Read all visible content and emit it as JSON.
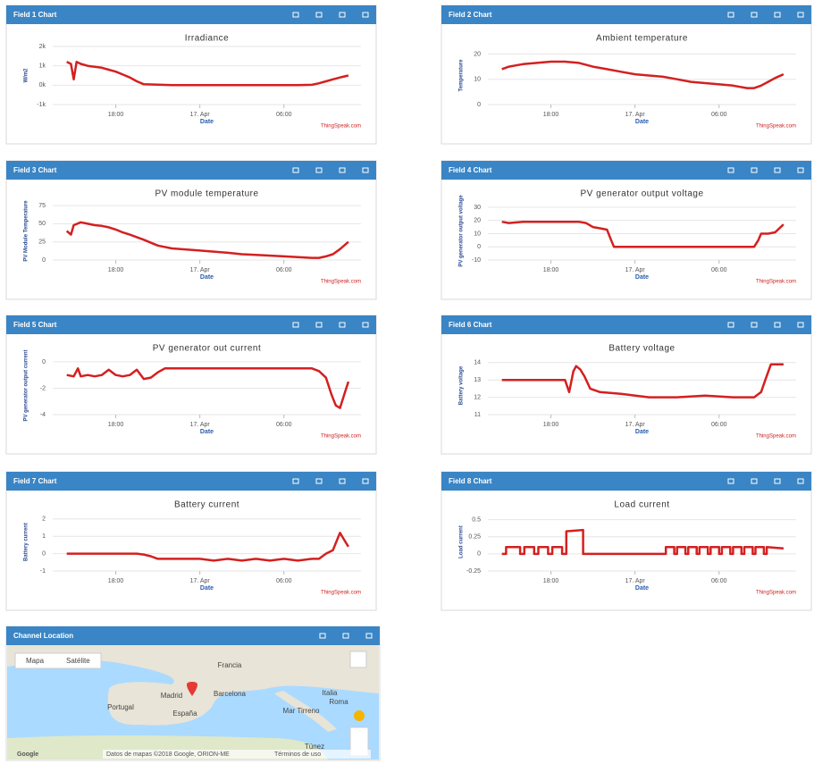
{
  "chart_data": [
    {
      "type": "line",
      "panel_title": "Field 1 Chart",
      "title": "Irradiance",
      "ylabel": "W/m2",
      "xlabel": "Date",
      "credit": "ThingSpeak.com",
      "color": "#d42020",
      "grid": true,
      "x": [
        14.5,
        14.8,
        15.0,
        15.2,
        15.5,
        16,
        16.5,
        17,
        17.5,
        18,
        18.5,
        19,
        19.5,
        20,
        22,
        24,
        26,
        28,
        30,
        31,
        32,
        32.5,
        33,
        33.5,
        34,
        34.6
      ],
      "values": [
        1200,
        1100,
        300,
        1200,
        1100,
        1000,
        950,
        900,
        800,
        700,
        550,
        400,
        200,
        50,
        0,
        0,
        0,
        0,
        0,
        0,
        20,
        100,
        200,
        300,
        400,
        500
      ],
      "xlim": [
        13.5,
        35.5
      ],
      "ylim": [
        -1000,
        2000
      ],
      "xticks": [
        {
          "value": 18,
          "label": "18:00"
        },
        {
          "value": 24,
          "label": "17. Apr"
        },
        {
          "value": 30,
          "label": "06:00"
        }
      ],
      "yticks": [
        {
          "value": -1000,
          "label": "-1k"
        },
        {
          "value": 0,
          "label": "0k"
        },
        {
          "value": 1000,
          "label": "1k"
        },
        {
          "value": 2000,
          "label": "2k"
        }
      ]
    },
    {
      "type": "line",
      "panel_title": "Field 2 Chart",
      "title": "Ambient temperature",
      "ylabel": "Temperature",
      "xlabel": "Date",
      "credit": "ThingSpeak.com",
      "color": "#d42020",
      "grid": true,
      "x": [
        14.5,
        15,
        15.5,
        16,
        17,
        18,
        19,
        20,
        21,
        22,
        23,
        24,
        25,
        26,
        27,
        28,
        29,
        30,
        31,
        32,
        32.5,
        33,
        33.5,
        34,
        34.6
      ],
      "values": [
        14,
        15,
        15.5,
        16,
        16.5,
        17,
        17,
        16.5,
        15,
        14,
        13,
        12,
        11.5,
        11,
        10,
        9,
        8.5,
        8,
        7.5,
        6.5,
        6.5,
        7.5,
        9,
        10.5,
        12
      ],
      "xlim": [
        13.5,
        35.5
      ],
      "ylim": [
        0,
        23
      ],
      "xticks": [
        {
          "value": 18,
          "label": "18:00"
        },
        {
          "value": 24,
          "label": "17. Apr"
        },
        {
          "value": 30,
          "label": "06:00"
        }
      ],
      "yticks": [
        0,
        10,
        20
      ]
    },
    {
      "type": "line",
      "panel_title": "Field 3 Chart",
      "title": "PV module temperature",
      "ylabel": "PV Module Temperature",
      "xlabel": "Date",
      "credit": "ThingSpeak.com",
      "color": "#d42020",
      "grid": true,
      "x": [
        14.5,
        14.8,
        15.0,
        15.5,
        16,
        16.5,
        17,
        17.5,
        18,
        18.5,
        19,
        20,
        21,
        22,
        24,
        26,
        27,
        28,
        30,
        31,
        32,
        32.5,
        33,
        33.5,
        34,
        34.6
      ],
      "values": [
        40,
        35,
        48,
        52,
        50,
        48,
        47,
        45,
        42,
        38,
        35,
        28,
        20,
        16,
        13,
        10,
        8,
        7,
        5,
        4,
        3,
        3,
        5,
        8,
        15,
        25
      ],
      "xlim": [
        13.5,
        35.5
      ],
      "ylim": [
        0,
        80
      ],
      "xticks": [
        {
          "value": 18,
          "label": "18:00"
        },
        {
          "value": 24,
          "label": "17. Apr"
        },
        {
          "value": 30,
          "label": "06:00"
        }
      ],
      "yticks": [
        0,
        25,
        50,
        75
      ]
    },
    {
      "type": "line",
      "panel_title": "Field 4 Chart",
      "title": "PV generator output voltage",
      "ylabel": "PV generator output voltage",
      "xlabel": "Date",
      "credit": "ThingSpeak.com",
      "color": "#d42020",
      "grid": true,
      "x": [
        14.5,
        15,
        16,
        17,
        18,
        19,
        20,
        20.5,
        21,
        21.5,
        22,
        22.3,
        22.5,
        24,
        26,
        28,
        30,
        32,
        32.5,
        32.8,
        33,
        33.5,
        34,
        34.6
      ],
      "values": [
        19,
        18,
        19,
        19,
        19,
        19,
        19,
        18,
        15,
        14,
        13,
        5,
        0,
        0,
        0,
        0,
        0,
        0,
        0,
        5,
        10,
        10,
        11,
        17
      ],
      "xlim": [
        13.5,
        35.5
      ],
      "ylim": [
        -10,
        34
      ],
      "xticks": [
        {
          "value": 18,
          "label": "18:00"
        },
        {
          "value": 24,
          "label": "17. Apr"
        },
        {
          "value": 30,
          "label": "06:00"
        }
      ],
      "yticks": [
        -10,
        0,
        10,
        20,
        30
      ]
    },
    {
      "type": "line",
      "panel_title": "Field 5 Chart",
      "title": "PV generator out current",
      "ylabel": "PV generator output current",
      "xlabel": "Date",
      "credit": "ThingSpeak.com",
      "color": "#d42020",
      "grid": true,
      "x": [
        14.5,
        15,
        15.3,
        15.5,
        16,
        16.5,
        17,
        17.5,
        18,
        18.5,
        19,
        19.5,
        20,
        20.5,
        21,
        21.5,
        22,
        24,
        26,
        28,
        30,
        32,
        32.5,
        33,
        33.4,
        33.7,
        34,
        34.3,
        34.6
      ],
      "values": [
        -1,
        -1.1,
        -0.5,
        -1.1,
        -1,
        -1.1,
        -1,
        -0.6,
        -1,
        -1.1,
        -1,
        -0.6,
        -1.3,
        -1.2,
        -0.8,
        -0.5,
        -0.5,
        -0.5,
        -0.5,
        -0.5,
        -0.5,
        -0.5,
        -0.7,
        -1.2,
        -2.5,
        -3.3,
        -3.5,
        -2.5,
        -1.5
      ],
      "xlim": [
        13.5,
        35.5
      ],
      "ylim": [
        -4,
        0.4
      ],
      "xticks": [
        {
          "value": 18,
          "label": "18:00"
        },
        {
          "value": 24,
          "label": "17. Apr"
        },
        {
          "value": 30,
          "label": "06:00"
        }
      ],
      "yticks": [
        -4,
        -2,
        0
      ]
    },
    {
      "type": "line",
      "panel_title": "Field 6 Chart",
      "title": "Battery voltage",
      "ylabel": "Battery voltage",
      "xlabel": "Date",
      "credit": "ThingSpeak.com",
      "color": "#d42020",
      "grid": true,
      "x": [
        14.5,
        16,
        18,
        19,
        19.3,
        19.6,
        19.8,
        20.1,
        20.4,
        20.8,
        21.5,
        23,
        25,
        27,
        29,
        31,
        32,
        32.5,
        33,
        33.3,
        33.7,
        34.6
      ],
      "values": [
        13,
        13,
        13,
        13,
        12.3,
        13.5,
        13.8,
        13.6,
        13.2,
        12.5,
        12.3,
        12.2,
        12,
        12,
        12.1,
        12,
        12,
        12,
        12.3,
        13,
        13.9,
        13.9
      ],
      "xlim": [
        13.5,
        35.5
      ],
      "ylim": [
        11,
        14.35
      ],
      "xticks": [
        {
          "value": 18,
          "label": "18:00"
        },
        {
          "value": 24,
          "label": "17. Apr"
        },
        {
          "value": 30,
          "label": "06:00"
        }
      ],
      "yticks": [
        11,
        12,
        13,
        14
      ]
    },
    {
      "type": "line",
      "panel_title": "Field 7 Chart",
      "title": "Battery current",
      "ylabel": "Battery current",
      "xlabel": "Date",
      "credit": "ThingSpeak.com",
      "color": "#d42020",
      "grid": true,
      "x": [
        14.5,
        16,
        18,
        19.5,
        20,
        20.5,
        21,
        22,
        24,
        25,
        26,
        27,
        28,
        29,
        30,
        31,
        32,
        32.5,
        33,
        33.5,
        33.8,
        34,
        34.3,
        34.6
      ],
      "values": [
        0,
        0,
        0,
        0,
        -0.05,
        -0.15,
        -0.3,
        -0.3,
        -0.3,
        -0.4,
        -0.3,
        -0.4,
        -0.3,
        -0.4,
        -0.3,
        -0.4,
        -0.3,
        -0.3,
        0,
        0.2,
        0.8,
        1.2,
        0.8,
        0.4
      ],
      "xlim": [
        13.5,
        35.5
      ],
      "ylim": [
        -1,
        2.35
      ],
      "xticks": [
        {
          "value": 18,
          "label": "18:00"
        },
        {
          "value": 24,
          "label": "17. Apr"
        },
        {
          "value": 30,
          "label": "06:00"
        }
      ],
      "yticks": [
        -1,
        0,
        1,
        2
      ]
    },
    {
      "type": "line",
      "panel_title": "Field 8 Chart",
      "title": "Load current",
      "ylabel": "Load current",
      "xlabel": "Date",
      "credit": "ThingSpeak.com",
      "color": "#d42020",
      "grid": true,
      "x": [
        14.5,
        14.8,
        14.8,
        15.8,
        15.8,
        16.1,
        16.1,
        16.8,
        16.8,
        17.1,
        17.1,
        17.8,
        17.8,
        18.1,
        18.1,
        18.8,
        18.8,
        19.1,
        19.1,
        20.3,
        20.3,
        26.2,
        26.2,
        26.8,
        26.8,
        27,
        27,
        27.6,
        27.6,
        27.8,
        27.8,
        28.4,
        28.4,
        28.6,
        28.6,
        29.2,
        29.2,
        29.4,
        29.4,
        30,
        30,
        30.2,
        30.2,
        30.8,
        30.8,
        31,
        31,
        31.6,
        31.6,
        31.8,
        31.8,
        32.4,
        32.4,
        32.6,
        32.6,
        33.2,
        33.2,
        33.4,
        33.4,
        34.6
      ],
      "values": [
        0,
        0,
        0.1,
        0.1,
        0,
        0,
        0.1,
        0.1,
        0,
        0,
        0.1,
        0.1,
        0,
        0,
        0.1,
        0.1,
        0,
        0,
        0.33,
        0.35,
        0,
        0,
        0.1,
        0.1,
        0,
        0,
        0.1,
        0.1,
        0,
        0,
        0.1,
        0.1,
        0,
        0,
        0.1,
        0.1,
        0,
        0,
        0.1,
        0.1,
        0,
        0,
        0.1,
        0.1,
        0,
        0,
        0.1,
        0.1,
        0,
        0,
        0.1,
        0.1,
        0,
        0,
        0.1,
        0.1,
        0,
        0,
        0.1,
        0.08
      ],
      "xlim": [
        13.5,
        35.5
      ],
      "ylim": [
        -0.25,
        0.6
      ],
      "xticks": [
        {
          "value": 18,
          "label": "18:00"
        },
        {
          "value": 24,
          "label": "17. Apr"
        },
        {
          "value": 30,
          "label": "06:00"
        }
      ],
      "yticks": [
        -0.25,
        0,
        0.25,
        0.5
      ]
    }
  ],
  "map": {
    "panel_title": "Channel Location",
    "buttons": [
      "Mapa",
      "Satélite"
    ],
    "places": [
      "Francia",
      "Portugal",
      "Madrid",
      "España",
      "Barcelona",
      "Italia",
      "Roma",
      "Mar Tirreno",
      "Túnez"
    ],
    "logo": "Google",
    "attribution": "Datos de mapas ©2018 Google, ORION-ME",
    "terms": "Términos de uso"
  }
}
